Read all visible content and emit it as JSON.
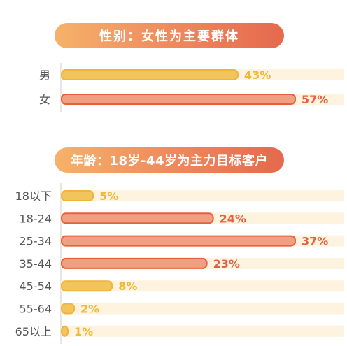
{
  "colors": {
    "track": "#fdf3de",
    "yellow_fill": "#f2c45c",
    "yellow_stroke": "#eeb43c",
    "yellow_text": "#f0b838",
    "orange_fill": "#f0a080",
    "orange_stroke": "#e5603f",
    "orange_text": "#e5603f",
    "axis": "#cccccc"
  },
  "chart_data": [
    {
      "type": "bar",
      "orientation": "horizontal",
      "title": "性别：女性为主要群体",
      "categories": [
        "男",
        "女"
      ],
      "values": [
        43,
        57
      ],
      "value_labels": [
        "43%",
        "57%"
      ],
      "highlight": [
        false,
        true
      ],
      "xlim": [
        0,
        57
      ],
      "grid": false
    },
    {
      "type": "bar",
      "orientation": "horizontal",
      "title": "年龄：18岁-44岁为主力目标客户",
      "categories": [
        "18以下",
        "18-24",
        "25-34",
        "35-44",
        "45-54",
        "55-64",
        "65以上"
      ],
      "values": [
        5,
        24,
        37,
        23,
        8,
        2,
        1
      ],
      "value_labels": [
        "5%",
        "24%",
        "37%",
        "23%",
        "8%",
        "2%",
        "1%"
      ],
      "highlight": [
        false,
        true,
        true,
        true,
        false,
        false,
        false
      ],
      "xlim": [
        0,
        37
      ],
      "grid": false
    }
  ]
}
